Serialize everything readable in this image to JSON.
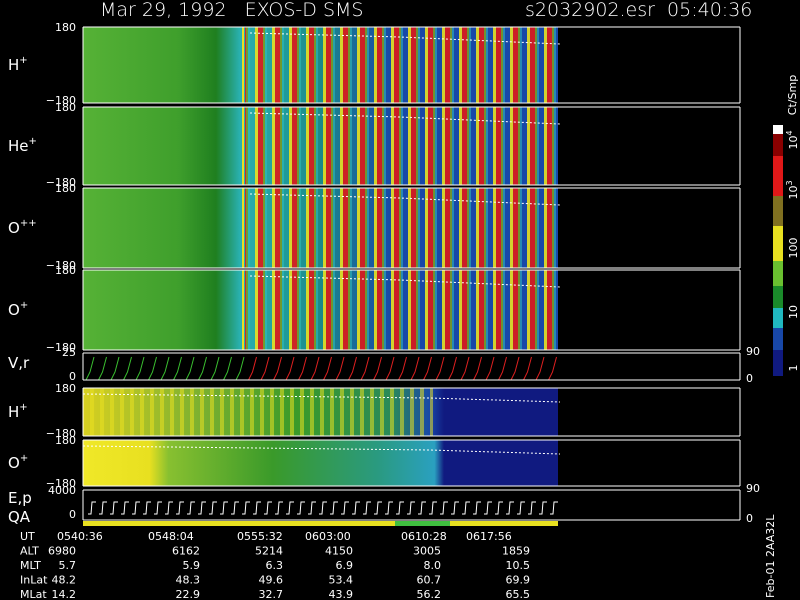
{
  "header": {
    "title": "Mar 29, 1992   EXOS-D SMS",
    "file": "s2032902.esr  05:40:36"
  },
  "panels": [
    {
      "species": "H",
      "charge": "+",
      "top": "180",
      "bottom": "−180"
    },
    {
      "species": "He",
      "charge": "+",
      "top": "180",
      "bottom": "−180"
    },
    {
      "species": "O",
      "charge": "++",
      "top": "180",
      "bottom": "−180"
    },
    {
      "species": "O",
      "charge": "+",
      "top": "180",
      "bottom": "−180"
    }
  ],
  "vr": {
    "label": "V,r",
    "top": "25",
    "zero": "0",
    "right_top": "90",
    "right_zero": "0"
  },
  "lower": [
    {
      "species": "H",
      "charge": "+",
      "top": "180",
      "bottom": "−180"
    },
    {
      "species": "O",
      "charge": "+",
      "top": "180",
      "bottom": "−180"
    }
  ],
  "ep": {
    "label": "E,p",
    "qa": "QA",
    "top": "4000",
    "zero": "0",
    "right_top": "90",
    "right_zero": "0"
  },
  "colorbar": {
    "unit": "Ct/Smp",
    "labels": [
      {
        "base": "10",
        "exp": "4"
      },
      {
        "base": "10",
        "exp": "3"
      },
      {
        "base": "100"
      },
      {
        "base": "10"
      },
      {
        "base": "1"
      }
    ]
  },
  "footer": {
    "rows": [
      [
        "UT",
        "0540:36",
        "0548:04",
        "0555:32",
        "0603:00",
        "0610:28",
        "0617:56"
      ],
      [
        "ALT",
        "6980",
        "6162",
        "5214",
        "4150",
        "3005",
        "1859"
      ],
      [
        "MLT",
        "5.7",
        "5.9",
        "6.3",
        "6.9",
        "8.0",
        "10.5"
      ],
      [
        "InLat",
        "48.2",
        "48.3",
        "49.6",
        "53.4",
        "60.7",
        "69.9"
      ],
      [
        "MLat",
        "14.2",
        "22.9",
        "32.7",
        "43.9",
        "56.2",
        "65.5"
      ]
    ]
  },
  "stamp": "Feb-01 2AA32L"
}
